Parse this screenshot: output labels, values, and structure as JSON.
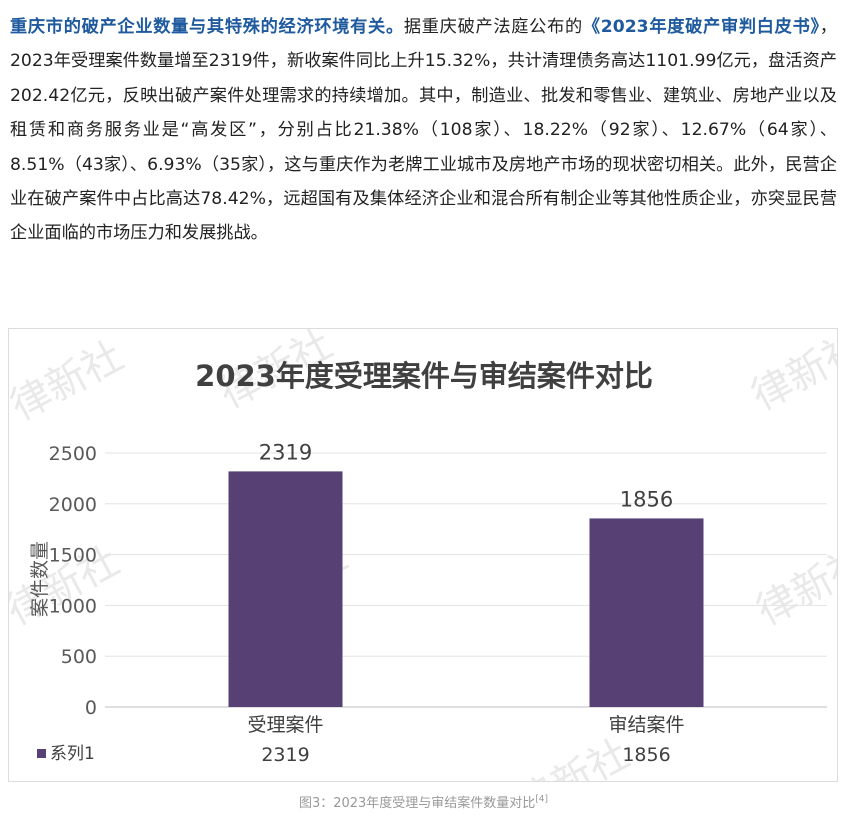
{
  "article": {
    "bold_lead": "重庆市的破产企业数量与其特殊的经济环境有关。",
    "text_before_link": "据重庆破产法庭公布的",
    "link_text": "《2023年度破产审判白皮书》",
    "text_after_link": "，2023年受理案件数量增至2319件，新收案件同比上升15.32%，共计清理债务高达1101.99亿元，盘活资产202.42亿元，反映出破产案件处理需求的持续增加。其中，制造业、批发和零售业、建筑业、房地产业以及租赁和商务服务业是“高发区”，分别占比21.38%（108家）、18.22%（92家）、12.67%（64家）、8.51%（43家）、6.93%（35家），这与重庆作为老牌工业城市及房地产市场的现状密切相关。此外，民营企业在破产案件中占比高达78.42%，远超国有及集体经济企业和混合所有制企业等其他性质企业，亦突显民营企业面临的市场压力和发展挑战。"
  },
  "watermark": "律新社",
  "chart_data": {
    "type": "bar",
    "title": "2023年度受理案件与审结案件对比",
    "categories": [
      "受理案件",
      "审结案件"
    ],
    "series": [
      {
        "name": "系列1",
        "values": [
          2319,
          1856
        ],
        "color": "#574174"
      }
    ],
    "ylabel": "案件数量",
    "xlabel": "",
    "ylim": [
      0,
      2500
    ],
    "yticks": [
      0,
      500,
      1000,
      1500,
      2000,
      2500
    ],
    "grid": true,
    "legend": "data-table-below"
  },
  "caption": {
    "text": "图3：2023年度受理与审结案件数量对比",
    "ref": "[4]"
  }
}
